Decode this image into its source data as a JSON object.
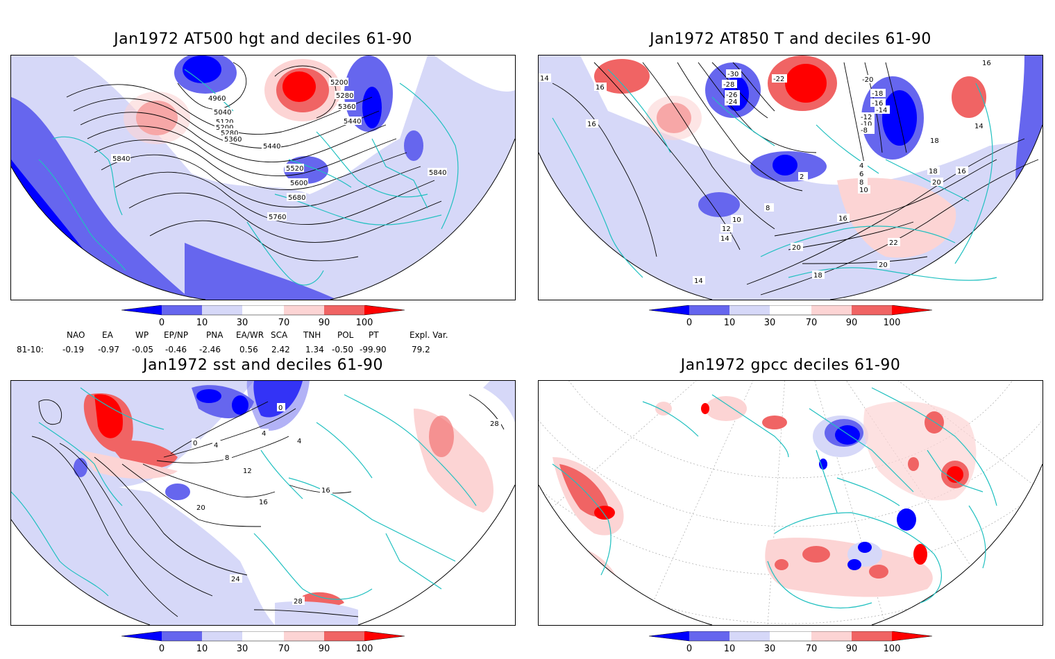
{
  "panels": {
    "tl": {
      "title": "Jan1972 AT500 hgt and deciles 61-90",
      "contour_labels": [
        "4960",
        "5040",
        "5120",
        "5200",
        "5280",
        "5360",
        "5440",
        "5520",
        "5600",
        "5680",
        "5760",
        "5840",
        "5200",
        "5280",
        "5360",
        "5440",
        "5840"
      ]
    },
    "tr": {
      "title": "Jan1972 AT850 T and deciles 61-90",
      "contour_labels": [
        "14",
        "16",
        "16",
        "18",
        "16",
        "14",
        "16",
        "18",
        "20",
        "-30",
        "-28",
        "-26",
        "-24",
        "-22",
        "-20",
        "-18",
        "-16",
        "-14",
        "-12",
        "-10",
        "-8",
        "2",
        "4",
        "6",
        "8",
        "10",
        "8",
        "10",
        "12",
        "14",
        "16",
        "22",
        "20",
        "18",
        "20",
        "14"
      ]
    },
    "bl": {
      "title": "Jan1972 sst and deciles 61-90",
      "contour_labels": [
        "0",
        "4",
        "8",
        "12",
        "16",
        "20",
        "24",
        "28",
        "0",
        "4",
        "4",
        "16",
        "28"
      ]
    },
    "br": {
      "title": "Jan1972 gpcc deciles 61-90"
    }
  },
  "colorbar": {
    "tick_labels": [
      "0",
      "10",
      "30",
      "70",
      "90",
      "100"
    ],
    "colors": [
      "#0000ff",
      "#6666ee",
      "#d6d8f8",
      "#ffffff",
      "#fcd4d4",
      "#f06464",
      "#ff0000"
    ]
  },
  "indices": {
    "headers": [
      "NAO",
      "EA",
      "WP",
      "EP/NP",
      "PNA",
      "EA/WR",
      "SCA",
      "TNH",
      "POL",
      "PT",
      "Expl. Var."
    ],
    "row_label": "81-10:",
    "values": [
      "-0.19",
      "-0.97",
      "-0.05",
      "-0.46",
      "-2.46",
      "0.56",
      "2.42",
      "1.34",
      "-0.50",
      "-99.90",
      "79.2"
    ]
  }
}
